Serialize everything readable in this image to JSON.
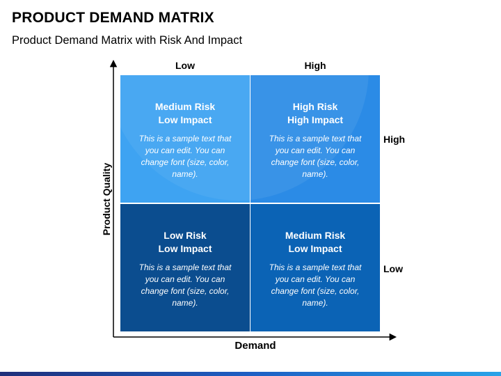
{
  "header": {
    "title": "PRODUCT DEMAND MATRIX",
    "subtitle": "Product Demand Matrix with Risk And Impact"
  },
  "axes": {
    "x_title": "Demand",
    "y_title": "Product Quality",
    "columns": [
      "Low",
      "High"
    ],
    "rows": [
      "High",
      "Low"
    ]
  },
  "quadrants": [
    {
      "heading_1": "Medium Risk",
      "heading_2": "Low Impact",
      "text": "This is a sample text that you can edit. You can change font (size, color, name).",
      "color": "#3ea3f2"
    },
    {
      "heading_1": "High Risk",
      "heading_2": "High Impact",
      "text": "This is a sample text that you can edit. You can change font (size, color, name).",
      "color": "#2b8be6"
    },
    {
      "heading_1": "Low Risk",
      "heading_2": "Low Impact",
      "text": "This is a sample text that you can edit. You can change font (size, color, name).",
      "color": "#0b4d8f"
    },
    {
      "heading_1": "Medium Risk",
      "heading_2": "Low Impact",
      "text": "This is a sample text that you can edit. You can change font (size, color, name).",
      "color": "#0b63b5"
    }
  ]
}
